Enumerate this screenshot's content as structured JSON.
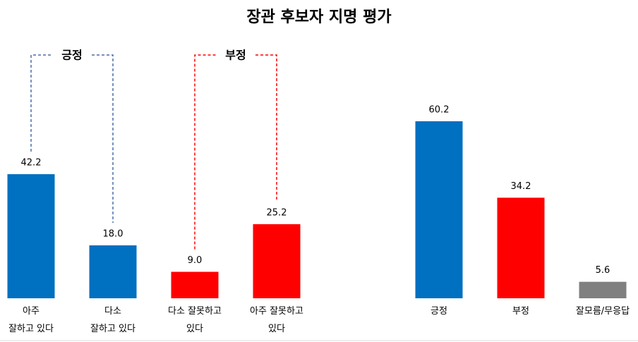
{
  "chart_data": [
    {
      "type": "bar",
      "title": "장관 후보자 지명 평가",
      "categories": [
        "아주\n잘하고 있다",
        "다소\n잘하고 있다",
        "다소 잘못하고\n있다",
        "아주 잘못하고\n있다"
      ],
      "values": [
        42.2,
        18,
        9,
        25.2
      ],
      "value_labels": [
        "42.2",
        "18.0",
        "9.0",
        "25.2"
      ],
      "colors": [
        "#0070c0",
        "#0070c0",
        "#ff0000",
        "#ff0000"
      ],
      "annotations": [
        {
          "text": "긍정",
          "color": "#4a6fa5"
        },
        {
          "text": "부정",
          "color": "#ff0000"
        }
      ]
    },
    {
      "type": "bar",
      "categories": [
        "긍정",
        "부정",
        "잘모름/무응답"
      ],
      "values": [
        60.2,
        34.2,
        5.6
      ],
      "colors": [
        "#0070c0",
        "#ff0000",
        "#808080"
      ]
    }
  ]
}
